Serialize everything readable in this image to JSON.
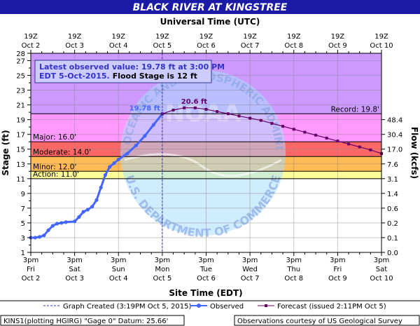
{
  "chart_data": {
    "type": "line",
    "title": "BLACK RIVER AT KINGSTREE",
    "top_axis_title": "Universal Time (UTC)",
    "xlabel": "Site Time (EDT)",
    "ylabel": "Stage (ft)",
    "y2label": "Flow (kcfs)",
    "ylim": [
      1,
      28
    ],
    "y_ticks": [
      1,
      3,
      5,
      7,
      9,
      11,
      13,
      15,
      17,
      19,
      21,
      23,
      25,
      27,
      28
    ],
    "y_minor_ticks": [
      2,
      4,
      6,
      8,
      10,
      12,
      14,
      16,
      18,
      20,
      22,
      24,
      26
    ],
    "x_ticks_bottom": [
      {
        "pos": 0,
        "time": "3pm",
        "day": "Fri",
        "date": "Oct 2"
      },
      {
        "pos": 1,
        "time": "3pm",
        "day": "Sat",
        "date": "Oct 3"
      },
      {
        "pos": 2,
        "time": "3pm",
        "day": "Sun",
        "date": "Oct 4"
      },
      {
        "pos": 3,
        "time": "3pm",
        "day": "Mon",
        "date": "Oct 5"
      },
      {
        "pos": 4,
        "time": "3pm",
        "day": "Tue",
        "date": "Oct 6"
      },
      {
        "pos": 5,
        "time": "3pm",
        "day": "Wed",
        "date": "Oct 7"
      },
      {
        "pos": 6,
        "time": "3pm",
        "day": "Thu",
        "date": "Oct 8"
      },
      {
        "pos": 7,
        "time": "3pm",
        "day": "Fri",
        "date": "Oct 9"
      },
      {
        "pos": 8,
        "time": "3pm",
        "day": "Sat",
        "date": "Oct 10"
      }
    ],
    "x_ticks_top": [
      {
        "pos": 0,
        "time": "19Z",
        "date": "Oct 2"
      },
      {
        "pos": 1,
        "time": "19Z",
        "date": "Oct 3"
      },
      {
        "pos": 2,
        "time": "19Z",
        "date": "Oct 4"
      },
      {
        "pos": 3,
        "time": "19Z",
        "date": "Oct 5"
      },
      {
        "pos": 4,
        "time": "19Z",
        "date": "Oct 6"
      },
      {
        "pos": 5,
        "time": "19Z",
        "date": "Oct 7"
      },
      {
        "pos": 6,
        "time": "19Z",
        "date": "Oct 8"
      },
      {
        "pos": 7,
        "time": "19Z",
        "date": "Oct 9"
      },
      {
        "pos": 8,
        "time": "19Z",
        "date": "Oct 10"
      }
    ],
    "flow_ticks": [
      {
        "stage": 19,
        "label": "48.4"
      },
      {
        "stage": 17,
        "label": "30.4"
      },
      {
        "stage": 15,
        "label": "17.0"
      },
      {
        "stage": 13,
        "label": "7.6"
      },
      {
        "stage": 11,
        "label": "3.1"
      },
      {
        "stage": 9,
        "label": "1.4"
      },
      {
        "stage": 7,
        "label": "0.6"
      },
      {
        "stage": 5,
        "label": "0.2"
      },
      {
        "stage": 3,
        "label": "0.1"
      },
      {
        "stage": 1,
        "label": "0.0"
      }
    ],
    "bands": [
      {
        "name": "Record",
        "from": 19.8,
        "to": 28,
        "color": "#cc99ff",
        "label": "Record: 19.8'",
        "line": 19.8
      },
      {
        "name": "Major",
        "from": 16,
        "to": 19.8,
        "color": "#ff99ff",
        "label": "Major: 16.0'",
        "line": 16
      },
      {
        "name": "Moderate",
        "from": 14,
        "to": 16,
        "color": "#ff6666",
        "label": "Moderate: 14.0'",
        "line": 14
      },
      {
        "name": "Minor",
        "from": 12,
        "to": 14,
        "color": "#ffbb55",
        "label": "Minor: 12.0'",
        "line": 12
      },
      {
        "name": "Action",
        "from": 11,
        "to": 12,
        "color": "#ffff99",
        "label": "Action: 11.0'",
        "line": 11
      }
    ],
    "series": [
      {
        "name": "Observed",
        "color": "#4466ff",
        "x": [
          0,
          0.1,
          0.2,
          0.3,
          0.4,
          0.5,
          0.6,
          0.7,
          0.8,
          1.0,
          1.1,
          1.2,
          1.3,
          1.4,
          1.5,
          1.6,
          1.7,
          1.8,
          1.9,
          2.0,
          2.2,
          2.4,
          2.6,
          2.8,
          3.0
        ],
        "y": [
          3.0,
          3.0,
          3.1,
          3.3,
          4.0,
          4.6,
          4.9,
          5.0,
          5.1,
          5.2,
          5.8,
          6.5,
          6.8,
          7.2,
          8.1,
          9.8,
          11.5,
          12.6,
          13.1,
          13.6,
          14.4,
          15.5,
          16.8,
          18.3,
          19.78
        ]
      },
      {
        "name": "Forecast (issued 2:11PM Oct 5)",
        "color": "#660066",
        "x": [
          3.0,
          3.25,
          3.5,
          3.75,
          4.0,
          4.25,
          4.5,
          4.75,
          5.0,
          5.25,
          5.5,
          5.75,
          6.0,
          6.25,
          6.5,
          6.75,
          7.0,
          7.25,
          7.5,
          7.75,
          8.0
        ],
        "y": [
          19.78,
          20.3,
          20.6,
          20.6,
          20.4,
          20.1,
          19.8,
          19.5,
          19.2,
          18.9,
          18.5,
          18.1,
          17.7,
          17.3,
          16.9,
          16.5,
          16.1,
          15.7,
          15.3,
          14.9,
          14.4
        ]
      }
    ],
    "annotations": {
      "obs_label": "19.78 ft",
      "crest_label": "20.6 ft",
      "crest_x": 3.6,
      "crest_y": 20.6,
      "graph_created_x": 3.0
    },
    "info_box": {
      "line1": "Latest observed value: 19.78 ft at 3:00 PM",
      "line2a": "EDT 5-Oct-2015.",
      "line2b": "Flood Stage is 12 ft"
    },
    "legend": {
      "created": "Graph Created (3:19PM Oct 5, 2015)",
      "observed": "Observed",
      "forecast": "Forecast (issued 2:11PM Oct 5)"
    },
    "footer": {
      "left": "KINS1(plotting HGIRG) \"Gage 0\" Datum: 25.66'",
      "right": "Observations courtesy of US Geological Survey"
    },
    "watermark": {
      "line1": "NATIONAL OCEANIC AND ATMOSPHERIC ADMINISTRATION",
      "line2": "U.S. DEPARTMENT OF COMMERCE",
      "center": "NOAA"
    }
  }
}
